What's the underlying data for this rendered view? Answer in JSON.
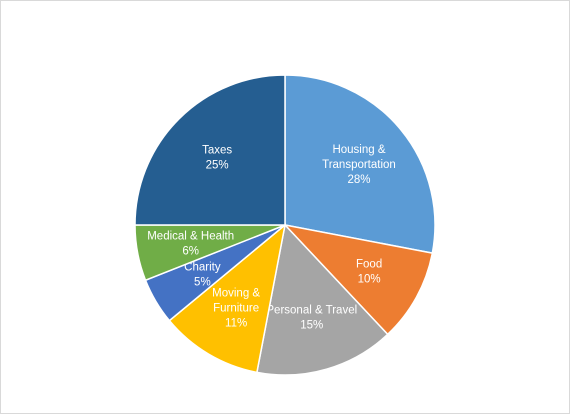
{
  "chart_data": {
    "type": "pie",
    "start_angle_deg": 0,
    "direction": "clockwise",
    "slices": [
      {
        "label": [
          "Housing &",
          "Transportation"
        ],
        "value": 28,
        "value_label": "28%",
        "color": "#5b9bd5"
      },
      {
        "label": [
          "Food"
        ],
        "value": 10,
        "value_label": "10%",
        "color": "#ed7d31"
      },
      {
        "label": [
          "Personal & Travel"
        ],
        "value": 15,
        "value_label": "15%",
        "color": "#a5a5a5"
      },
      {
        "label": [
          "Moving &",
          "Furniture"
        ],
        "value": 11,
        "value_label": "11%",
        "color": "#ffc000"
      },
      {
        "label": [
          "Charity"
        ],
        "value": 5,
        "value_label": "5%",
        "color": "#4472c4"
      },
      {
        "label": [
          "Medical & Health"
        ],
        "value": 6,
        "value_label": "6%",
        "color": "#70ad47"
      },
      {
        "label": [
          "Taxes"
        ],
        "value": 25,
        "value_label": "25%",
        "color": "#255e91"
      }
    ]
  }
}
